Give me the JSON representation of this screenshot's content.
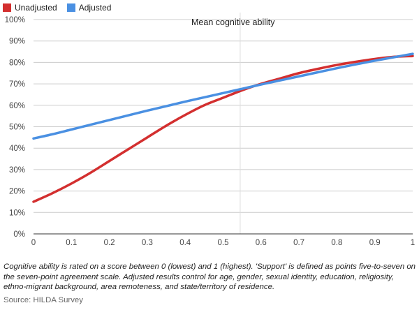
{
  "chart_data": {
    "type": "line",
    "title": "Mean cognitive ability",
    "xlabel": "",
    "ylabel": "",
    "xlim": [
      0,
      1
    ],
    "ylim": [
      0,
      100
    ],
    "xticks": [
      "0",
      "0.1",
      "0.2",
      "0.3",
      "0.4",
      "0.5",
      "0.6",
      "0.7",
      "0.8",
      "0.9",
      "1"
    ],
    "yticks": [
      "0%",
      "10%",
      "20%",
      "30%",
      "40%",
      "50%",
      "60%",
      "70%",
      "80%",
      "90%",
      "100%"
    ],
    "grid": true,
    "legend_position": "top-left",
    "series": [
      {
        "name": "Unadjusted",
        "color": "#d32f2f",
        "x": [
          0,
          0.05,
          0.1,
          0.15,
          0.2,
          0.25,
          0.3,
          0.35,
          0.4,
          0.45,
          0.5,
          0.55,
          0.6,
          0.65,
          0.7,
          0.75,
          0.8,
          0.85,
          0.9,
          0.95,
          1
        ],
        "y": [
          15,
          19,
          23.5,
          28.5,
          34,
          39.5,
          45,
          50.5,
          55.5,
          60,
          63.5,
          67,
          70,
          72.5,
          75,
          77,
          78.8,
          80.3,
          81.6,
          82.6,
          83
        ]
      },
      {
        "name": "Adjusted",
        "color": "#4a90e2",
        "x": [
          0,
          0.05,
          0.1,
          0.15,
          0.2,
          0.25,
          0.3,
          0.35,
          0.4,
          0.45,
          0.5,
          0.55,
          0.6,
          0.65,
          0.7,
          0.75,
          0.8,
          0.85,
          0.9,
          0.95,
          1
        ],
        "y": [
          44.5,
          46.5,
          48.7,
          50.9,
          53.1,
          55.3,
          57.5,
          59.6,
          61.7,
          63.7,
          65.7,
          67.7,
          69.7,
          71.6,
          73.5,
          75.4,
          77.3,
          79.1,
          80.8,
          82.4,
          84
        ]
      }
    ],
    "vertical_marker_x": 0.545
  },
  "legend": [
    {
      "label": "Unadjusted",
      "color": "#d32f2f"
    },
    {
      "label": "Adjusted",
      "color": "#4a90e2"
    }
  ],
  "note": "Cognitive ability is rated on a score between 0 (lowest) and 1 (highest). 'Support' is defined as points five-to-seven on the seven-point agreement scale. Adjusted results control for age, gender, sexual identity, education, religiosity, ethno-migrant background, area remoteness, and state/territory of residence.",
  "source": "Source: HILDA Survey"
}
